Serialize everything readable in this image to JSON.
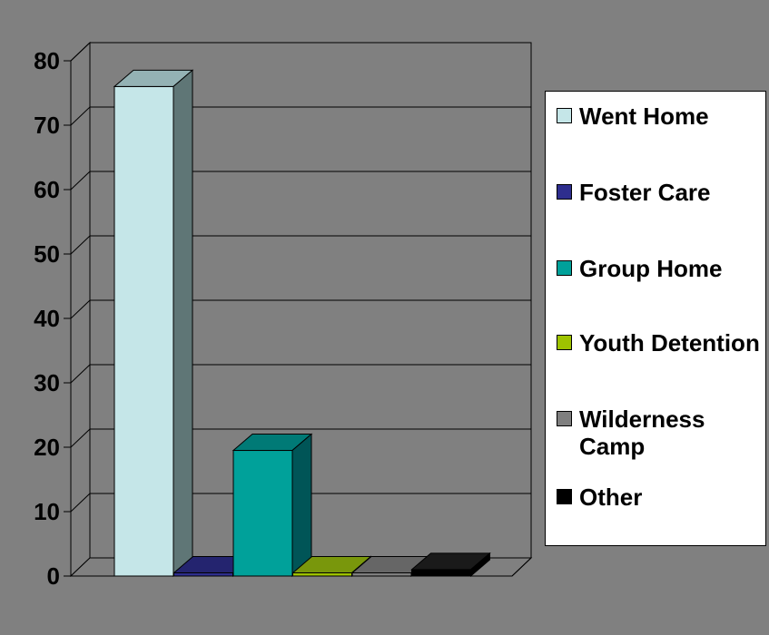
{
  "chart_data": {
    "type": "bar",
    "categories": [
      "Went Home",
      "Foster Care",
      "Group Home",
      "Youth Detention",
      "Wilderness Camp",
      "Other"
    ],
    "values": [
      76,
      0.5,
      19.5,
      0.5,
      0.5,
      1
    ],
    "ylim": [
      0,
      80
    ],
    "yticks": [
      "0",
      "10",
      "20",
      "30",
      "40",
      "50",
      "60",
      "70",
      "80"
    ],
    "grid": true,
    "legend_position": "right",
    "colors": [
      "#c5e6e8",
      "#2e2e8e",
      "#00a19a",
      "#9ec300",
      "#7f7f7f",
      "#000000"
    ],
    "side_colors": [
      "#5f7676",
      "#1f1f5c",
      "#005557",
      "#566e00",
      "#4f4f4f",
      "#000000"
    ],
    "top_colors": [
      "#94b2b4",
      "#24246f",
      "#007a76",
      "#79970c",
      "#666666",
      "#1a1a1a"
    ]
  },
  "legend": {
    "items": [
      {
        "label": "Went Home",
        "color": "#c5e6e8"
      },
      {
        "label": "Foster Care",
        "color": "#2e2e8e"
      },
      {
        "label": "Group Home",
        "color": "#00a19a"
      },
      {
        "label": "Youth Detention",
        "color": "#9ec300"
      },
      {
        "label": "Wilderness Camp",
        "color": "#7f7f7f"
      },
      {
        "label": "Other",
        "color": "#000000"
      }
    ]
  }
}
